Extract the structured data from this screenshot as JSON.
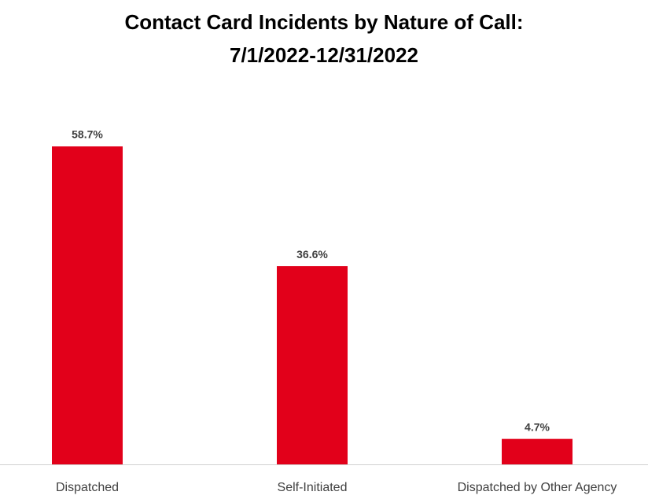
{
  "chart_data": {
    "type": "bar",
    "title": [
      "Contact Card Incidents by Nature of Call:",
      "7/1/2022-12/31/2022"
    ],
    "categories": [
      "Dispatched",
      "Self-Initiated",
      "Dispatched by Other Agency"
    ],
    "values": [
      58.7,
      36.6,
      4.7
    ],
    "value_labels": [
      "58.7%",
      "36.6%",
      "4.7%"
    ],
    "color": "#e2001a"
  }
}
